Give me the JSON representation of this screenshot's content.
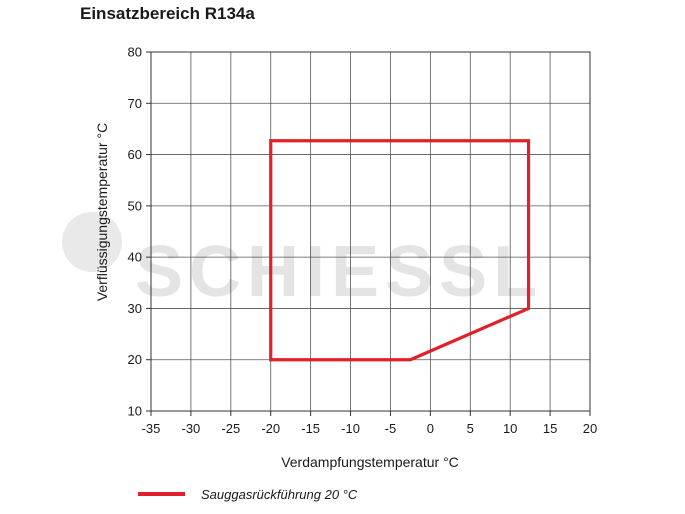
{
  "chart_data": {
    "type": "line",
    "title": "Einsatzbereich R134a",
    "xlabel": "Verdampfungstemperatur °C",
    "ylabel": "Verflüssigungstemperatur °C",
    "xlim": [
      -35,
      20
    ],
    "ylim": [
      10,
      80
    ],
    "xticks": [
      -35,
      -30,
      -25,
      -20,
      -15,
      -10,
      -5,
      0,
      5,
      10,
      15,
      20
    ],
    "yticks": [
      10,
      20,
      30,
      40,
      50,
      60,
      70,
      80
    ],
    "grid": true,
    "series": [
      {
        "name": "Sauggasrückführung 20 °C",
        "color": "#e0202a",
        "closed": true,
        "x": [
          -20,
          12.3,
          12.3,
          -2.5,
          -20
        ],
        "y": [
          62.7,
          62.7,
          30,
          20,
          20
        ]
      }
    ],
    "legend_position": "bottom-left",
    "watermark": "SCHIESSL"
  }
}
